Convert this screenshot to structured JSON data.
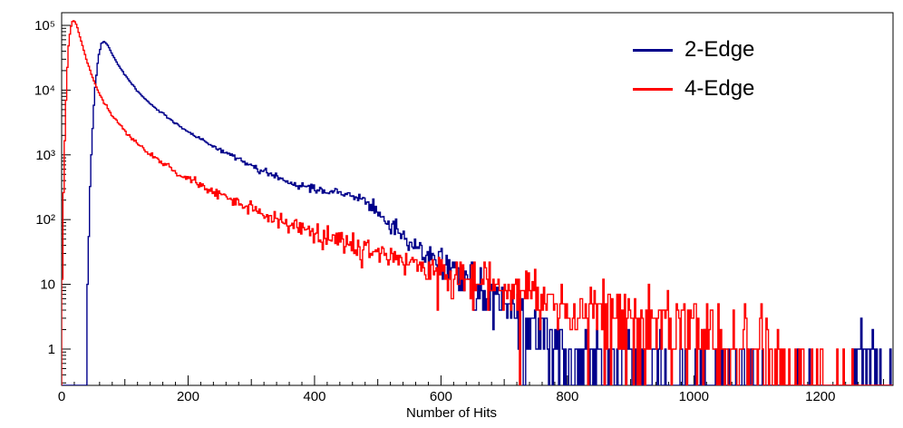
{
  "chart_data": {
    "type": "line",
    "subtype": "step-histogram",
    "title": "",
    "xlabel": "Number of Hits",
    "ylabel": "",
    "xlim": [
      0,
      1315
    ],
    "ylim": [
      0.275,
      157000
    ],
    "yscale": "log",
    "grid": false,
    "background": "#ffffff",
    "frame_color": "#000000",
    "legend_position": "top-right",
    "bin_width": 2,
    "x_ticks": [
      {
        "v": 0,
        "label": "0"
      },
      {
        "v": 200,
        "label": "200"
      },
      {
        "v": 400,
        "label": "400"
      },
      {
        "v": 600,
        "label": "600"
      },
      {
        "v": 800,
        "label": "800"
      },
      {
        "v": 1000,
        "label": "1000"
      },
      {
        "v": 1200,
        "label": "1200"
      }
    ],
    "x_medium_tick_step": 100,
    "x_minor_tick_step": 20,
    "y_ticks": [
      {
        "v": 1,
        "label": "1"
      },
      {
        "v": 10,
        "label": "10"
      },
      {
        "v": 100,
        "label": "10²"
      },
      {
        "v": 1000,
        "label": "10³"
      },
      {
        "v": 10000,
        "label": "10⁴"
      },
      {
        "v": 100000,
        "label": "10⁵"
      }
    ],
    "series": [
      {
        "name": "2-Edge",
        "color": "#00008b",
        "seed": 7,
        "anchors": [
          [
            0,
            0.001
          ],
          [
            34,
            0.01
          ],
          [
            40,
            4
          ],
          [
            46,
            700
          ],
          [
            52,
            9000
          ],
          [
            58,
            32000
          ],
          [
            63,
            52000
          ],
          [
            67,
            57000
          ],
          [
            72,
            51000
          ],
          [
            80,
            36000
          ],
          [
            90,
            24000
          ],
          [
            100,
            17500
          ],
          [
            115,
            11000
          ],
          [
            130,
            7600
          ],
          [
            145,
            5600
          ],
          [
            160,
            4300
          ],
          [
            180,
            3100
          ],
          [
            200,
            2300
          ],
          [
            220,
            1750
          ],
          [
            240,
            1350
          ],
          [
            260,
            1060
          ],
          [
            280,
            840
          ],
          [
            300,
            670
          ],
          [
            320,
            545
          ],
          [
            340,
            450
          ],
          [
            360,
            385
          ],
          [
            380,
            330
          ],
          [
            400,
            295
          ],
          [
            420,
            272
          ],
          [
            440,
            255
          ],
          [
            455,
            240
          ],
          [
            470,
            215
          ],
          [
            480,
            185
          ],
          [
            490,
            155
          ],
          [
            500,
            125
          ],
          [
            510,
            100
          ],
          [
            520,
            80
          ],
          [
            532,
            64
          ],
          [
            545,
            50
          ],
          [
            558,
            40
          ],
          [
            572,
            32
          ],
          [
            586,
            26
          ],
          [
            600,
            21
          ],
          [
            620,
            16
          ],
          [
            640,
            12.5
          ],
          [
            660,
            10
          ],
          [
            680,
            7.8
          ],
          [
            700,
            5.5
          ],
          [
            720,
            4
          ],
          [
            740,
            3
          ],
          [
            760,
            2.2
          ],
          [
            780,
            1.7
          ],
          [
            800,
            1.3
          ],
          [
            830,
            1.0
          ],
          [
            860,
            0.8
          ],
          [
            900,
            0.6
          ],
          [
            950,
            0.45
          ],
          [
            1000,
            0.35
          ],
          [
            1080,
            0.25
          ],
          [
            1160,
            0.18
          ],
          [
            1240,
            0.22
          ],
          [
            1315,
            0.4
          ]
        ]
      },
      {
        "name": "4-Edge",
        "color": "#ff0000",
        "seed": 99,
        "anchors": [
          [
            0,
            8
          ],
          [
            3,
            300
          ],
          [
            6,
            4000
          ],
          [
            10,
            40000
          ],
          [
            14,
            90000
          ],
          [
            17,
            115000
          ],
          [
            20,
            118000
          ],
          [
            24,
            100000
          ],
          [
            28,
            72000
          ],
          [
            34,
            45000
          ],
          [
            40,
            28000
          ],
          [
            48,
            16500
          ],
          [
            56,
            10500
          ],
          [
            65,
            7000
          ],
          [
            75,
            4800
          ],
          [
            85,
            3500
          ],
          [
            95,
            2700
          ],
          [
            110,
            1850
          ],
          [
            125,
            1350
          ],
          [
            140,
            1020
          ],
          [
            155,
            800
          ],
          [
            170,
            640
          ],
          [
            185,
            520
          ],
          [
            200,
            430
          ],
          [
            220,
            340
          ],
          [
            240,
            270
          ],
          [
            260,
            220
          ],
          [
            280,
            180
          ],
          [
            300,
            148
          ],
          [
            320,
            122
          ],
          [
            340,
            102
          ],
          [
            360,
            86
          ],
          [
            380,
            73
          ],
          [
            400,
            62
          ],
          [
            420,
            53
          ],
          [
            440,
            46
          ],
          [
            460,
            40
          ],
          [
            480,
            35
          ],
          [
            500,
            30
          ],
          [
            520,
            26
          ],
          [
            540,
            23
          ],
          [
            560,
            20
          ],
          [
            580,
            17.5
          ],
          [
            600,
            15.5
          ],
          [
            625,
            13.5
          ],
          [
            650,
            11.8
          ],
          [
            675,
            10.3
          ],
          [
            700,
            9
          ],
          [
            730,
            7.7
          ],
          [
            760,
            6.6
          ],
          [
            790,
            5.7
          ],
          [
            820,
            4.9
          ],
          [
            850,
            4.2
          ],
          [
            880,
            3.7
          ],
          [
            910,
            3.2
          ],
          [
            940,
            2.8
          ],
          [
            970,
            2.4
          ],
          [
            1000,
            2.1
          ],
          [
            1030,
            1.8
          ],
          [
            1060,
            1.5
          ],
          [
            1090,
            1.2
          ],
          [
            1120,
            0.9
          ],
          [
            1150,
            0.6
          ],
          [
            1180,
            0.35
          ],
          [
            1210,
            0.18
          ],
          [
            1250,
            0.08
          ],
          [
            1315,
            0.03
          ]
        ]
      }
    ]
  },
  "legend": {
    "items": [
      {
        "label": "2-Edge",
        "color": "#00008b"
      },
      {
        "label": "4-Edge",
        "color": "#ff0000"
      }
    ]
  }
}
